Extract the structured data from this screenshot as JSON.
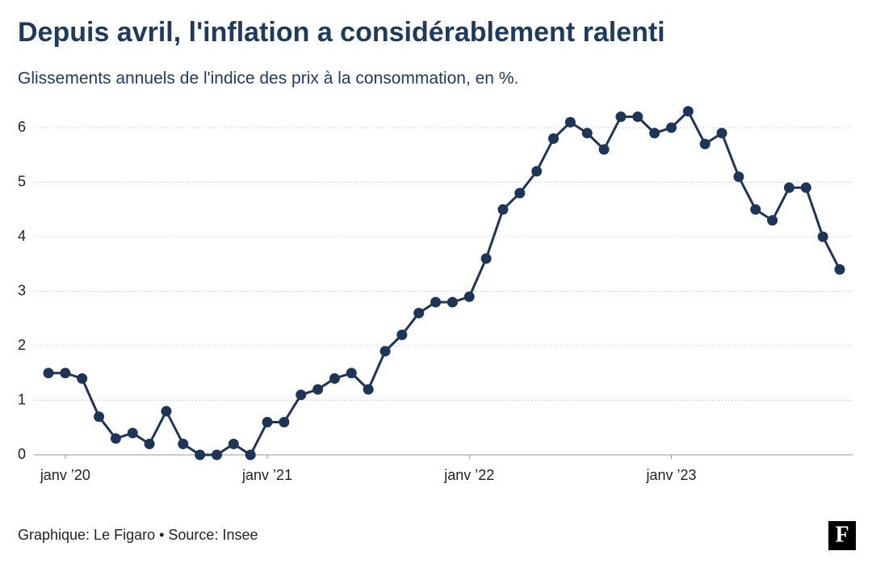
{
  "chart_data": {
    "type": "line",
    "title": "Depuis avril, l'inflation a considérablement ralenti",
    "subtitle": "Glissements annuels de l'indice des prix à la consommation, en %.",
    "source": "Graphique: Le Figaro • Source: Insee",
    "categories": [
      null,
      "janv ’20",
      null,
      null,
      null,
      null,
      null,
      null,
      null,
      null,
      null,
      null,
      null,
      "janv ’21",
      null,
      null,
      null,
      null,
      null,
      null,
      null,
      null,
      null,
      null,
      null,
      "janv ’22",
      null,
      null,
      null,
      null,
      null,
      null,
      null,
      null,
      null,
      null,
      null,
      "janv ’23",
      null,
      null,
      null,
      null,
      null,
      null,
      null,
      null,
      null,
      null
    ],
    "series": [
      {
        "name": "Inflation",
        "color": "#1d3557",
        "values": [
          1.5,
          1.5,
          1.4,
          0.7,
          0.3,
          0.4,
          0.2,
          0.8,
          0.2,
          0.0,
          0.0,
          0.2,
          0.0,
          0.6,
          0.6,
          1.1,
          1.2,
          1.4,
          1.5,
          1.2,
          1.9,
          2.2,
          2.6,
          2.8,
          2.8,
          2.9,
          3.6,
          4.5,
          4.8,
          5.2,
          5.8,
          6.1,
          5.9,
          5.6,
          6.2,
          6.2,
          5.9,
          6.0,
          6.3,
          5.7,
          5.9,
          5.1,
          4.5,
          4.3,
          4.9,
          4.9,
          4.0,
          3.4
        ]
      }
    ],
    "ylim": [
      0,
      6.5
    ],
    "yticks": [
      0,
      1,
      2,
      3,
      4,
      5,
      6
    ],
    "grid": true
  }
}
